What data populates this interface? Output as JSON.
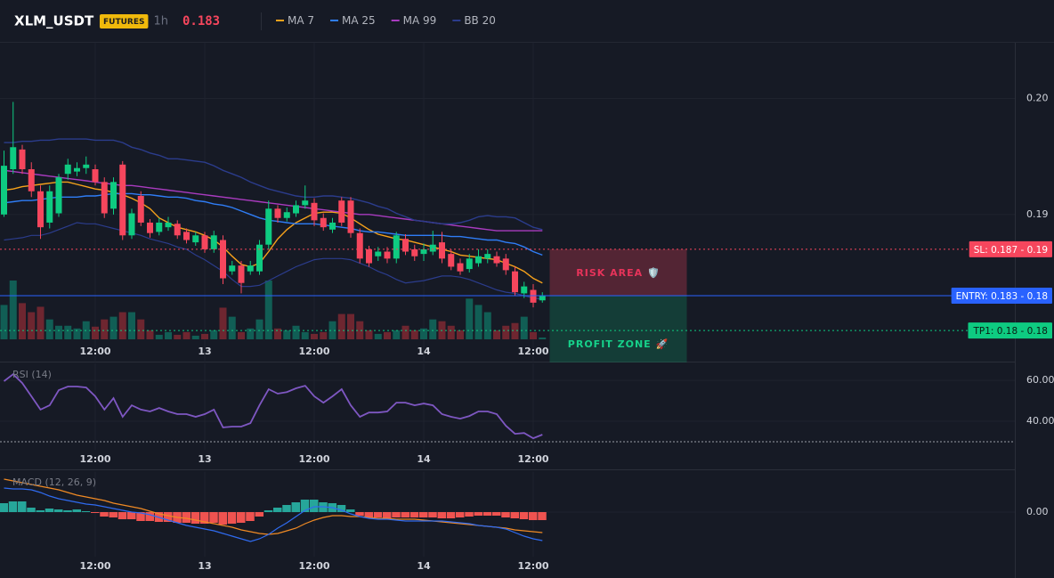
{
  "header": {
    "symbol": "XLM_USDT",
    "badge": "FUTURES",
    "interval": "1h",
    "price": 0.183,
    "price_color": "#f6465d"
  },
  "chart_data": [
    {
      "type": "candlestick",
      "categories": [
        null,
        null,
        null,
        null,
        null,
        null,
        null,
        null,
        null,
        null,
        "12:00",
        null,
        null,
        null,
        null,
        null,
        null,
        null,
        null,
        null,
        null,
        null,
        "13",
        null,
        null,
        null,
        null,
        null,
        null,
        null,
        null,
        null,
        null,
        null,
        "12:00",
        null,
        null,
        null,
        null,
        null,
        null,
        null,
        null,
        null,
        null,
        null,
        "14",
        null,
        null,
        null,
        null,
        null,
        null,
        null,
        null,
        null,
        null,
        null,
        "12:00",
        null
      ],
      "open": [
        0.19,
        0.1939,
        0.1956,
        0.1939,
        0.192,
        0.1893,
        0.1901,
        0.1935,
        0.1937,
        0.194,
        0.1939,
        0.1928,
        0.1905,
        0.1943,
        0.1882,
        0.1916,
        0.1893,
        0.1885,
        0.1889,
        0.1892,
        0.1885,
        0.1876,
        0.1882,
        0.187,
        0.1878,
        0.1851,
        0.1856,
        0.1851,
        0.1851,
        0.1874,
        0.1905,
        0.1897,
        0.1901,
        0.1908,
        0.191,
        0.1897,
        0.1887,
        0.1912,
        0.1912,
        0.1884,
        0.187,
        0.1864,
        0.1868,
        0.1862,
        0.1879,
        0.187,
        0.1866,
        0.1868,
        0.1876,
        0.1866,
        0.1858,
        0.1853,
        0.1858,
        0.1862,
        0.1864,
        0.1862,
        0.1851,
        0.1832,
        0.1835,
        0.1826
      ],
      "high": [
        0.1955,
        0.1997,
        0.196,
        0.1945,
        0.1925,
        0.1925,
        0.1935,
        0.1948,
        0.1945,
        0.195,
        0.1943,
        0.1932,
        0.1932,
        0.1946,
        0.1905,
        0.192,
        0.1896,
        0.1897,
        0.1898,
        0.1895,
        0.1888,
        0.1885,
        0.1885,
        0.1886,
        0.1882,
        0.186,
        0.186,
        0.186,
        0.1878,
        0.1912,
        0.1908,
        0.1906,
        0.1912,
        0.1925,
        0.1914,
        0.1901,
        0.1897,
        0.1915,
        0.1915,
        0.1888,
        0.1873,
        0.1872,
        0.1872,
        0.1885,
        0.1883,
        0.1874,
        0.1875,
        0.1886,
        0.1885,
        0.187,
        0.1862,
        0.1866,
        0.187,
        0.187,
        0.1868,
        0.1866,
        0.1855,
        0.1842,
        0.184,
        0.1833
      ],
      "low": [
        0.1898,
        0.1935,
        0.1935,
        0.1915,
        0.1879,
        0.1888,
        0.1898,
        0.193,
        0.1933,
        0.1935,
        0.1925,
        0.1897,
        0.19,
        0.1878,
        0.1879,
        0.189,
        0.188,
        0.1882,
        0.1886,
        0.1879,
        0.1875,
        0.1873,
        0.1867,
        0.1867,
        0.184,
        0.1848,
        0.1832,
        0.1848,
        0.1848,
        0.187,
        0.1893,
        0.1894,
        0.1898,
        0.1905,
        0.189,
        0.1886,
        0.1884,
        0.189,
        0.188,
        0.1858,
        0.1855,
        0.186,
        0.1858,
        0.1858,
        0.1865,
        0.186,
        0.186,
        0.1865,
        0.1858,
        0.1852,
        0.1848,
        0.185,
        0.1855,
        0.1858,
        0.1855,
        0.1848,
        0.183,
        0.1828,
        0.182,
        0.1824
      ],
      "close": [
        0.1942,
        0.1958,
        0.1939,
        0.192,
        0.1889,
        0.192,
        0.1932,
        0.1943,
        0.194,
        0.1943,
        0.1928,
        0.1901,
        0.1928,
        0.1882,
        0.1901,
        0.1893,
        0.1884,
        0.1893,
        0.1893,
        0.1882,
        0.1878,
        0.1882,
        0.187,
        0.1882,
        0.1845,
        0.1856,
        0.1841,
        0.1856,
        0.1874,
        0.1905,
        0.1897,
        0.1902,
        0.1908,
        0.1912,
        0.1895,
        0.1889,
        0.1893,
        0.1893,
        0.1884,
        0.1862,
        0.1858,
        0.1868,
        0.1862,
        0.1882,
        0.1868,
        0.1864,
        0.187,
        0.1874,
        0.1862,
        0.1855,
        0.1851,
        0.1862,
        0.1864,
        0.1866,
        0.1858,
        0.1852,
        0.1833,
        0.1838,
        0.1824,
        0.183
      ],
      "volume": [
        38,
        65,
        40,
        30,
        36,
        22,
        15,
        15,
        12,
        20,
        14,
        22,
        25,
        30,
        30,
        22,
        10,
        5,
        8,
        5,
        8,
        4,
        6,
        10,
        35,
        25,
        8,
        12,
        22,
        65,
        12,
        10,
        15,
        8,
        6,
        8,
        20,
        28,
        28,
        20,
        10,
        6,
        8,
        10,
        15,
        10,
        12,
        22,
        20,
        15,
        10,
        45,
        38,
        30,
        10,
        15,
        18,
        25,
        8,
        2
      ],
      "up_color": "#0ecb81",
      "down_color": "#f6465d",
      "volume_up_color": "#115e55",
      "volume_down_color": "#6e2630",
      "series": [
        {
          "name": "MA 7",
          "color": "#f7a21b",
          "values": [
            0.1921,
            0.1922,
            0.1924,
            0.1925,
            0.1926,
            0.1927,
            0.1928,
            0.1928,
            0.1926,
            0.1924,
            0.1922,
            0.1921,
            0.1919,
            0.1917,
            0.1914,
            0.191,
            0.1905,
            0.1897,
            0.1893,
            0.1889,
            0.1887,
            0.1885,
            0.1882,
            0.1878,
            0.1872,
            0.1864,
            0.1857,
            0.1855,
            0.1858,
            0.1868,
            0.1879,
            0.1887,
            0.1893,
            0.1897,
            0.1901,
            0.1902,
            0.1902,
            0.1901,
            0.1897,
            0.1892,
            0.1887,
            0.1883,
            0.1881,
            0.1879,
            0.1878,
            0.1876,
            0.1874,
            0.1872,
            0.187,
            0.1868,
            0.1865,
            0.1864,
            0.1863,
            0.1862,
            0.1861,
            0.1858,
            0.1855,
            0.1851,
            0.1845,
            0.1841
          ]
        },
        {
          "name": "MA 25",
          "color": "#2f7df6",
          "values": [
            0.191,
            0.1911,
            0.1912,
            0.1912,
            0.1913,
            0.1914,
            0.1915,
            0.1915,
            0.1915,
            0.1916,
            0.1916,
            0.1917,
            0.1918,
            0.1918,
            0.1918,
            0.1917,
            0.1917,
            0.1916,
            0.1915,
            0.1915,
            0.1914,
            0.1912,
            0.1911,
            0.1909,
            0.1908,
            0.1906,
            0.1903,
            0.19,
            0.1897,
            0.1895,
            0.1894,
            0.1893,
            0.1892,
            0.1892,
            0.1892,
            0.1891,
            0.189,
            0.1889,
            0.1888,
            0.1886,
            0.1885,
            0.1885,
            0.1884,
            0.1883,
            0.1882,
            0.1882,
            0.1882,
            0.1882,
            0.1882,
            0.1881,
            0.1881,
            0.188,
            0.1879,
            0.1878,
            0.1878,
            0.1876,
            0.1875,
            0.1872,
            0.1868,
            0.1865
          ]
        },
        {
          "name": "MA 99",
          "color": "#a93bbf",
          "values": [
            0.1938,
            0.1937,
            0.1936,
            0.1935,
            0.1934,
            0.1933,
            0.1932,
            0.1931,
            0.193,
            0.1929,
            0.1928,
            0.1927,
            0.1926,
            0.1925,
            0.1925,
            0.1924,
            0.1923,
            0.1922,
            0.1921,
            0.192,
            0.1919,
            0.1918,
            0.1917,
            0.1916,
            0.1915,
            0.1914,
            0.1913,
            0.1912,
            0.1911,
            0.191,
            0.1909,
            0.1908,
            0.1907,
            0.1906,
            0.1905,
            0.1904,
            0.1903,
            0.1902,
            0.1901,
            0.19,
            0.19,
            0.1899,
            0.1898,
            0.1897,
            0.1896,
            0.1895,
            0.1894,
            0.1893,
            0.1892,
            0.1891,
            0.189,
            0.1889,
            0.1888,
            0.1887,
            0.1886,
            0.1886,
            0.1886,
            0.1886,
            0.1886,
            0.1886
          ]
        },
        {
          "name": "BB 20",
          "color": "#2b3c8c",
          "values": [
            0.1962,
            0.1962,
            0.1963,
            0.1963,
            0.1964,
            0.1964,
            0.1965,
            0.1965,
            0.1965,
            0.1965,
            0.1964,
            0.1964,
            0.1964,
            0.1962,
            0.1958,
            0.1956,
            0.1953,
            0.1951,
            0.1948,
            0.1948,
            0.1947,
            0.1946,
            0.1945,
            0.1942,
            0.1938,
            0.1935,
            0.1932,
            0.1928,
            0.1925,
            0.1922,
            0.192,
            0.1918,
            0.1916,
            0.1915,
            0.1915,
            0.1916,
            0.1916,
            0.1915,
            0.1914,
            0.1912,
            0.191,
            0.1907,
            0.1905,
            0.1901,
            0.1898,
            0.1895,
            0.1894,
            0.1893,
            0.1892,
            0.1892,
            0.1893,
            0.1895,
            0.1898,
            0.1899,
            0.1898,
            0.1898,
            0.1897,
            0.1893,
            0.1889,
            0.1887
          ],
          "lower": [
            0.1878,
            0.1879,
            0.188,
            0.1882,
            0.1882,
            0.1884,
            0.1887,
            0.189,
            0.1893,
            0.1892,
            0.1892,
            0.189,
            0.1888,
            0.1886,
            0.1884,
            0.1882,
            0.1879,
            0.1877,
            0.1875,
            0.1872,
            0.187,
            0.1865,
            0.1861,
            0.1856,
            0.1851,
            0.1844,
            0.1838,
            0.1838,
            0.1839,
            0.1843,
            0.1847,
            0.1851,
            0.1855,
            0.1858,
            0.1861,
            0.1862,
            0.1862,
            0.1862,
            0.1861,
            0.1858,
            0.1855,
            0.1851,
            0.1848,
            0.1844,
            0.1841,
            0.1842,
            0.1843,
            0.1845,
            0.1847,
            0.1847,
            0.1846,
            0.1844,
            0.1841,
            0.1838,
            0.1835,
            0.1833,
            0.1832,
            0.183,
            0.1828,
            0.1827
          ]
        }
      ],
      "ylim": [
        0.1774,
        0.2048
      ],
      "yticks": [
        {
          "value": 0.2,
          "label": "0.20"
        },
        0.19
      ],
      "grid": true,
      "levels": [
        {
          "label": "SL: 0.187 - 0.19",
          "value": 0.187,
          "color": "#f6465d",
          "style": "dotted"
        },
        {
          "label": "ENTRY: 0.183 - 0.18",
          "value": 0.183,
          "color": "#2962ff",
          "style": "solid"
        },
        {
          "label": "TP1: 0.18 - 0.18",
          "value": 0.18,
          "color": "#0ecb81",
          "style": "dotted"
        }
      ],
      "zones": {
        "risk": "RISK AREA 🛡️",
        "profit": "PROFIT ZONE 🚀"
      }
    },
    {
      "type": "line",
      "title": "RSI (14)",
      "color": "#7e57c2",
      "values": [
        59.6,
        63,
        58.7,
        52.2,
        45.7,
        47.8,
        55.2,
        57,
        57,
        56.5,
        52.2,
        45.7,
        51.3,
        42.2,
        47.8,
        45.7,
        44.8,
        46.5,
        44.8,
        43.5,
        43.5,
        42.2,
        43.5,
        45.7,
        37,
        37.4,
        37.4,
        39.1,
        47.8,
        55.7,
        53.5,
        54.3,
        56.1,
        57.4,
        52.2,
        49.1,
        52.2,
        55.7,
        47.8,
        42.2,
        44.3,
        44.3,
        44.8,
        49.1,
        49.1,
        47.8,
        48.7,
        47.8,
        43.5,
        42.2,
        41.3,
        42.6,
        44.8,
        44.8,
        43.5,
        37.8,
        33.9,
        34.3,
        31.7,
        33.5
      ],
      "ylim": [
        26.1,
        68.3
      ],
      "yticks": [
        {
          "value": 60,
          "label": "60.00"
        },
        {
          "value": 40,
          "label": "40.00"
        }
      ],
      "level": 30
    },
    {
      "type": "macd",
      "title": "MACD (12, 26, 9)",
      "histogram": [
        0.0002,
        0.00024,
        0.00024,
        0.0001,
        4e-05,
        8e-05,
        6e-05,
        4e-05,
        6e-05,
        2e-05,
        -2e-05,
        -0.0001,
        -0.00012,
        -0.00016,
        -0.00016,
        -0.0002,
        -0.0002,
        -0.00022,
        -0.00022,
        -0.00024,
        -0.00024,
        -0.00026,
        -0.00026,
        -0.00024,
        -0.00028,
        -0.00026,
        -0.00024,
        -0.0002,
        -0.0001,
        4e-05,
        0.0001,
        0.00016,
        0.00022,
        0.00028,
        0.00028,
        0.00022,
        0.0002,
        0.00016,
        6e-05,
        -8e-05,
        -0.00012,
        -0.00012,
        -0.00014,
        -0.00012,
        -0.00012,
        -0.00012,
        -0.00012,
        -0.00012,
        -0.00014,
        -0.00014,
        -0.00012,
        -0.0001,
        -8e-05,
        -8e-05,
        -8e-05,
        -0.00012,
        -0.00014,
        -0.00016,
        -0.00018,
        -0.00018
      ],
      "macd": [
        0.00054,
        0.00052,
        0.00052,
        0.0005,
        0.00044,
        0.00036,
        0.0003,
        0.00026,
        0.00022,
        0.00018,
        0.00016,
        0.00012,
        8e-05,
        4e-05,
        0,
        -2e-05,
        -6e-05,
        -0.00012,
        -0.00018,
        -0.00024,
        -0.0003,
        -0.00034,
        -0.00038,
        -0.00042,
        -0.00048,
        -0.00054,
        -0.0006,
        -0.00066,
        -0.0006,
        -0.0005,
        -0.00036,
        -0.00024,
        -0.0001,
        4e-05,
        0.00012,
        0.00012,
        0.0001,
        4e-05,
        -4e-05,
        -0.0001,
        -0.00014,
        -0.00016,
        -0.00016,
        -0.00018,
        -0.0002,
        -0.0002,
        -0.0002,
        -0.0002,
        -0.0002,
        -0.00022,
        -0.00024,
        -0.00026,
        -0.0003,
        -0.00032,
        -0.00034,
        -0.00038,
        -0.00046,
        -0.00054,
        -0.0006,
        -0.00064
      ],
      "signal": [
        0.00074,
        0.0007,
        0.00066,
        0.00062,
        0.00058,
        0.00054,
        0.0005,
        0.00044,
        0.00038,
        0.00034,
        0.0003,
        0.00026,
        0.0002,
        0.00016,
        0.00012,
        8e-05,
        2e-05,
        -4e-05,
        -8e-05,
        -0.00012,
        -0.00014,
        -0.00018,
        -0.00022,
        -0.00026,
        -0.0003,
        -0.00034,
        -0.0004,
        -0.00044,
        -0.00048,
        -0.0005,
        -0.00048,
        -0.00042,
        -0.00036,
        -0.00026,
        -0.00018,
        -0.00012,
        -8e-05,
        -8e-05,
        -0.0001,
        -0.0001,
        -0.00012,
        -0.00014,
        -0.00014,
        -0.00016,
        -0.00016,
        -0.00016,
        -0.00018,
        -0.0002,
        -0.00022,
        -0.00024,
        -0.00026,
        -0.00028,
        -0.0003,
        -0.00032,
        -0.00034,
        -0.00036,
        -0.0004,
        -0.00042,
        -0.00044,
        -0.00046
      ],
      "macd_color": "#2f6bf0",
      "signal_color": "#f08a24",
      "positive_color": "#26a69a",
      "negative_color": "#ef5350",
      "ylim": [
        -0.001,
        0.0009
      ],
      "yticks": [
        {
          "value": 0,
          "label": "0.00"
        }
      ]
    }
  ]
}
